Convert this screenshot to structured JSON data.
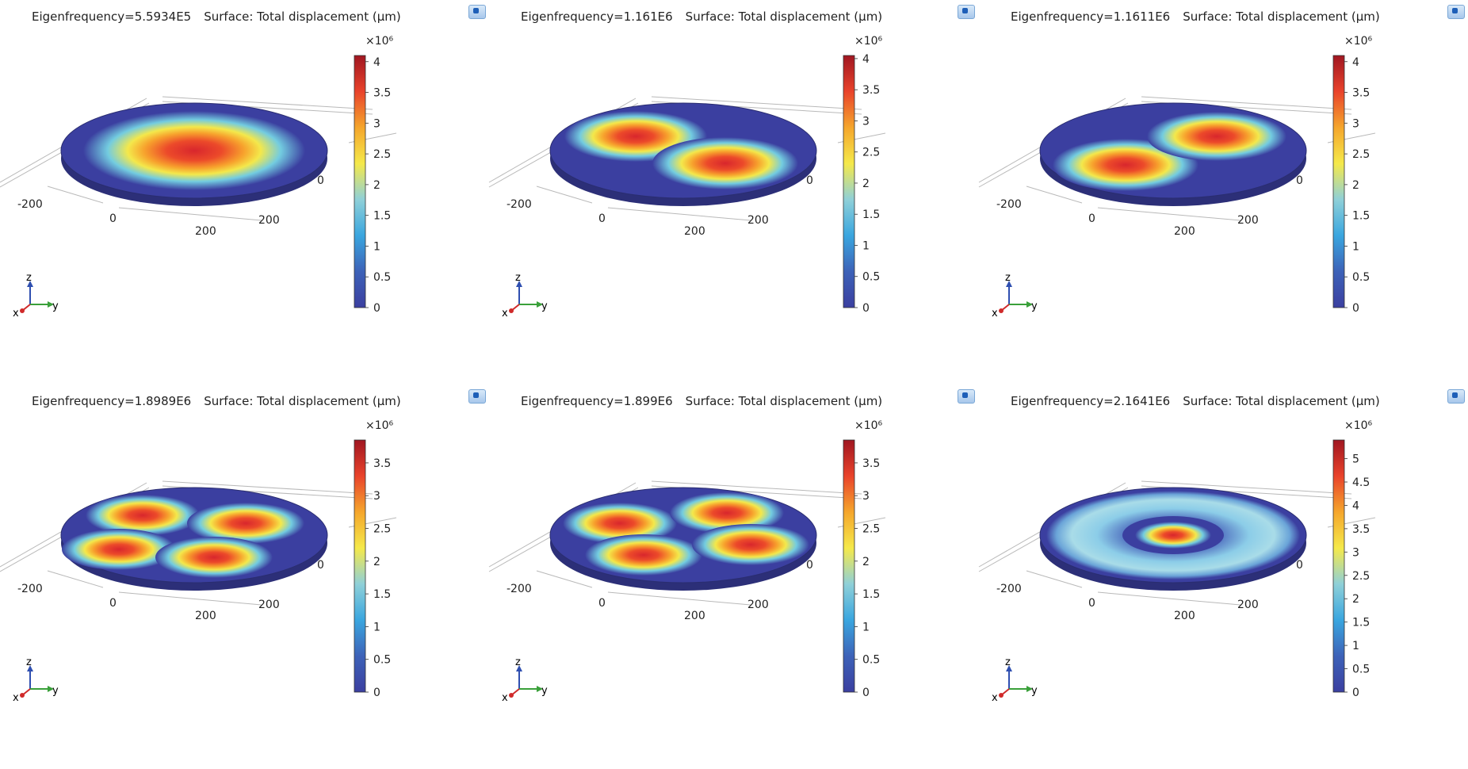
{
  "title_suffix": "Surface: Total displacement (µm)",
  "colorbar_exponent": "×10⁶",
  "axis_ticks": {
    "neg200": "-200",
    "zero": "0",
    "pos200": "200",
    "y200": "200",
    "y0": "0"
  },
  "triad": {
    "x": "x",
    "y": "y",
    "z": "z"
  },
  "colors": {
    "low": "#3b3fa0",
    "high": "#c8202a"
  },
  "panels": [
    {
      "id": "p1",
      "eigen": "Eigenfrequency=5.5934E5",
      "max": 4.1,
      "ticks": [
        "4",
        "3.5",
        "3",
        "2.5",
        "2",
        "1.5",
        "1",
        "0.5",
        "0"
      ],
      "mode": "01"
    },
    {
      "id": "p2",
      "eigen": "Eigenfrequency=1.161E6",
      "max": 4.05,
      "ticks": [
        "4",
        "3.5",
        "3",
        "2.5",
        "2",
        "1.5",
        "1",
        "0.5",
        "0"
      ],
      "mode": "11a"
    },
    {
      "id": "p3",
      "eigen": "Eigenfrequency=1.1611E6",
      "max": 4.1,
      "ticks": [
        "4",
        "3.5",
        "3",
        "2.5",
        "2",
        "1.5",
        "1",
        "0.5",
        "0"
      ],
      "mode": "11b"
    },
    {
      "id": "p4",
      "eigen": "Eigenfrequency=1.8989E6",
      "max": 3.85,
      "ticks": [
        "3.5",
        "3",
        "2.5",
        "2",
        "1.5",
        "1",
        "0.5",
        "0"
      ],
      "mode": "21a"
    },
    {
      "id": "p5",
      "eigen": "Eigenfrequency=1.899E6",
      "max": 3.85,
      "ticks": [
        "3.5",
        "3",
        "2.5",
        "2",
        "1.5",
        "1",
        "0.5",
        "0"
      ],
      "mode": "21b"
    },
    {
      "id": "p6",
      "eigen": "Eigenfrequency=2.1641E6",
      "max": 5.4,
      "ticks": [
        "5",
        "4.5",
        "4",
        "3.5",
        "3",
        "2.5",
        "2",
        "1.5",
        "1",
        "0.5",
        "0"
      ],
      "mode": "02"
    }
  ]
}
